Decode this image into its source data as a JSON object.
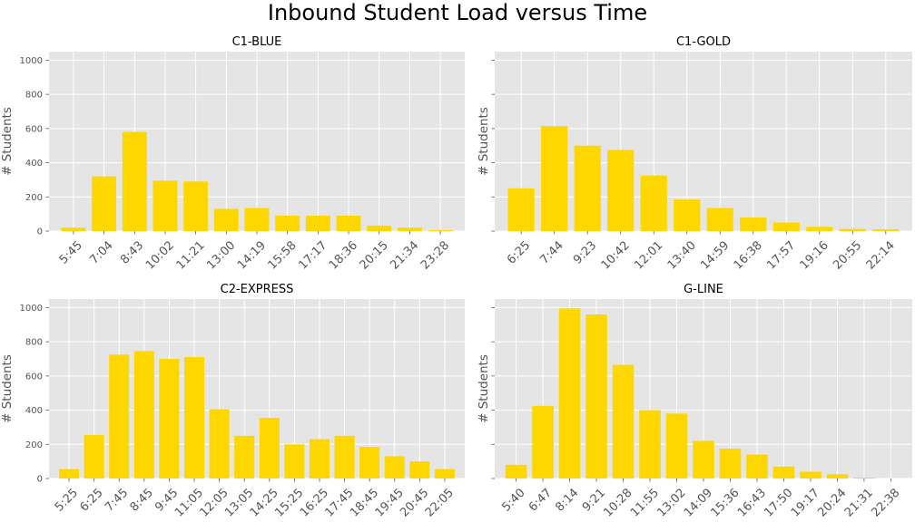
{
  "figure": {
    "title": "Inbound Student Load versus Time"
  },
  "style": {
    "bar_color": "#FFD700",
    "panel_bg": "#E5E5E5",
    "grid_color": "#FFFFFF",
    "text_color": "#555555"
  },
  "chart_data": [
    {
      "type": "bar",
      "title": "C1-BLUE",
      "ylabel": "# Students",
      "ylim": [
        0,
        1050
      ],
      "yticks": [
        0,
        200,
        400,
        600,
        800,
        1000
      ],
      "categories": [
        "5:45",
        "7:04",
        "8:43",
        "10:02",
        "11:21",
        "13:00",
        "14:19",
        "15:58",
        "17:17",
        "18:36",
        "20:15",
        "21:34",
        "23:28"
      ],
      "values": [
        20,
        320,
        580,
        295,
        290,
        130,
        135,
        90,
        90,
        90,
        32,
        20,
        5
      ]
    },
    {
      "type": "bar",
      "title": "C1-GOLD",
      "ylabel": "# Students",
      "ylim": [
        0,
        1050
      ],
      "yticks": [
        0,
        200,
        400,
        600,
        800,
        1000
      ],
      "categories": [
        "6:25",
        "7:44",
        "9:23",
        "10:42",
        "12:01",
        "13:40",
        "14:59",
        "16:38",
        "17:57",
        "19:16",
        "20:55",
        "22:14"
      ],
      "values": [
        250,
        615,
        500,
        475,
        325,
        185,
        135,
        80,
        50,
        25,
        12,
        10
      ]
    },
    {
      "type": "bar",
      "title": "C2-EXPRESS",
      "ylabel": "# Students",
      "ylim": [
        0,
        1050
      ],
      "yticks": [
        0,
        200,
        400,
        600,
        800,
        1000
      ],
      "categories": [
        "5:25",
        "6:25",
        "7:45",
        "8:45",
        "9:45",
        "11:05",
        "12:05",
        "13:05",
        "14:25",
        "15:25",
        "16:25",
        "17:45",
        "18:45",
        "19:45",
        "20:45",
        "22:05"
      ],
      "values": [
        55,
        255,
        725,
        745,
        700,
        710,
        405,
        250,
        355,
        200,
        230,
        250,
        185,
        130,
        100,
        55
      ]
    },
    {
      "type": "bar",
      "title": "G-LINE",
      "ylabel": "# Students",
      "ylim": [
        0,
        1050
      ],
      "yticks": [
        0,
        200,
        400,
        600,
        800,
        1000
      ],
      "categories": [
        "5:40",
        "6:47",
        "8:14",
        "9:21",
        "10:28",
        "11:55",
        "13:02",
        "14:09",
        "15:36",
        "16:43",
        "17:50",
        "19:17",
        "20:24",
        "21:31",
        "22:38"
      ],
      "values": [
        80,
        425,
        995,
        960,
        665,
        400,
        380,
        220,
        175,
        140,
        70,
        40,
        25,
        5,
        0
      ]
    }
  ]
}
